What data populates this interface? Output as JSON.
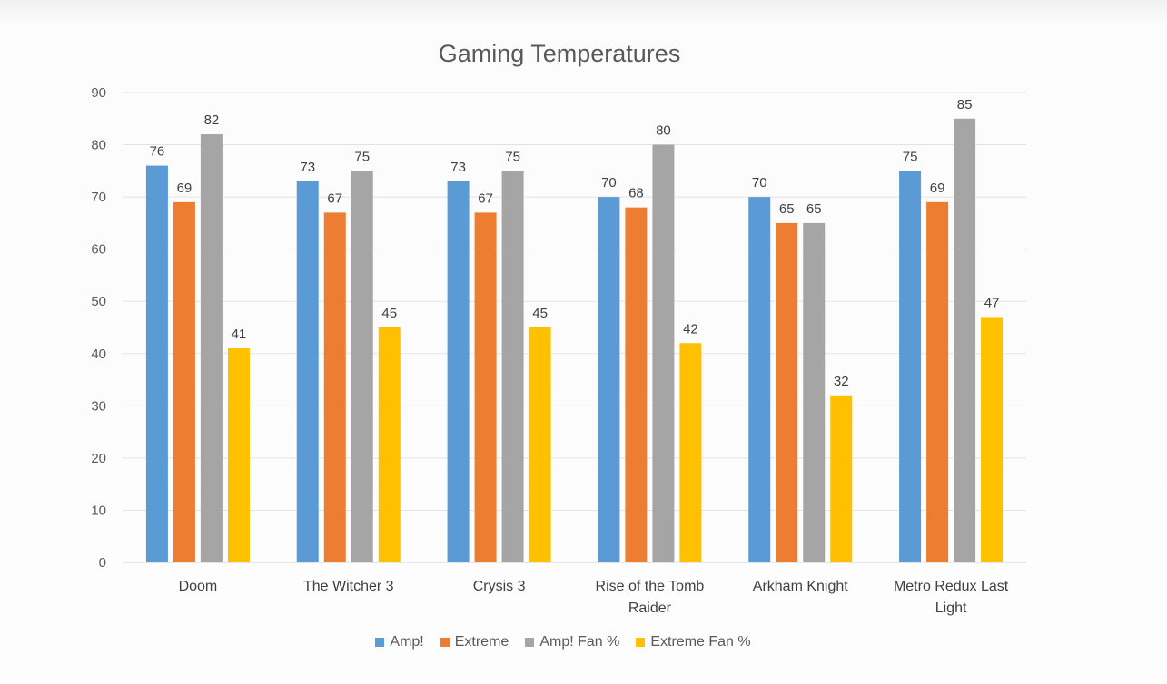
{
  "chart_data": {
    "type": "bar",
    "title": "Gaming Temperatures",
    "categories": [
      [
        "Doom"
      ],
      [
        "The Witcher 3"
      ],
      [
        "Crysis 3"
      ],
      [
        "Rise of the Tomb",
        "Raider"
      ],
      [
        "Arkham Knight"
      ],
      [
        "Metro Redux Last",
        "Light"
      ]
    ],
    "series": [
      {
        "name": "Amp!",
        "color": "#5b9bd5",
        "values": [
          76,
          73,
          73,
          70,
          70,
          75
        ]
      },
      {
        "name": "Extreme",
        "color": "#ed7d31",
        "values": [
          69,
          67,
          67,
          68,
          65,
          69
        ]
      },
      {
        "name": "Amp! Fan %",
        "color": "#a5a5a5",
        "values": [
          82,
          75,
          75,
          80,
          65,
          85
        ]
      },
      {
        "name": "Extreme Fan %",
        "color": "#ffc000",
        "values": [
          41,
          45,
          45,
          42,
          32,
          47
        ]
      }
    ],
    "ylim": [
      0,
      90
    ],
    "yticks": [
      0,
      10,
      20,
      30,
      40,
      50,
      60,
      70,
      80,
      90
    ],
    "grid": true,
    "legend_position": "bottom",
    "data_labels": true
  }
}
